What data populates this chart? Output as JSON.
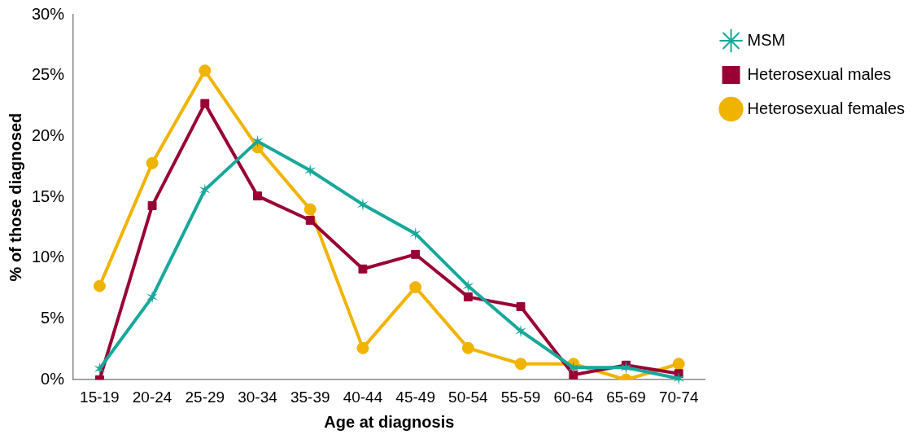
{
  "chart_data": {
    "type": "line",
    "xlabel": "Age at diagnosis",
    "ylabel": "% of those diagnosed",
    "categories": [
      "15-19",
      "20-24",
      "25-29",
      "30-34",
      "35-39",
      "40-44",
      "45-49",
      "50-54",
      "55-59",
      "60-64",
      "65-69",
      "70-74"
    ],
    "ylim": [
      0,
      30
    ],
    "yticks": [
      {
        "value": 0,
        "label": "0%"
      },
      {
        "value": 5,
        "label": "5%"
      },
      {
        "value": 10,
        "label": "10%"
      },
      {
        "value": 15,
        "label": "15%"
      },
      {
        "value": 20,
        "label": "20%"
      },
      {
        "value": 25,
        "label": "25%"
      },
      {
        "value": 30,
        "label": "30%"
      }
    ],
    "grid": false,
    "legend": "top right",
    "line_style": "solid",
    "series": [
      {
        "name": "MSM",
        "color": "#17a89b",
        "marker": "cross",
        "values": [
          0.9,
          6.8,
          15.6,
          19.6,
          17.2,
          14.4,
          12.0,
          7.7,
          4.0,
          1.0,
          1.0,
          0.1
        ]
      },
      {
        "name": "Heterosexual males",
        "color": "#990033",
        "marker": "square",
        "values": [
          0,
          14.3,
          22.7,
          15.1,
          13.1,
          9.1,
          10.3,
          6.8,
          6.0,
          0.4,
          1.2,
          0.5
        ]
      },
      {
        "name": "Heterosexual females",
        "color": "#f0b400",
        "marker": "circle",
        "values": [
          7.7,
          17.8,
          25.4,
          19.1,
          14.0,
          2.6,
          7.6,
          2.6,
          1.3,
          1.3,
          0,
          1.3
        ]
      }
    ]
  }
}
